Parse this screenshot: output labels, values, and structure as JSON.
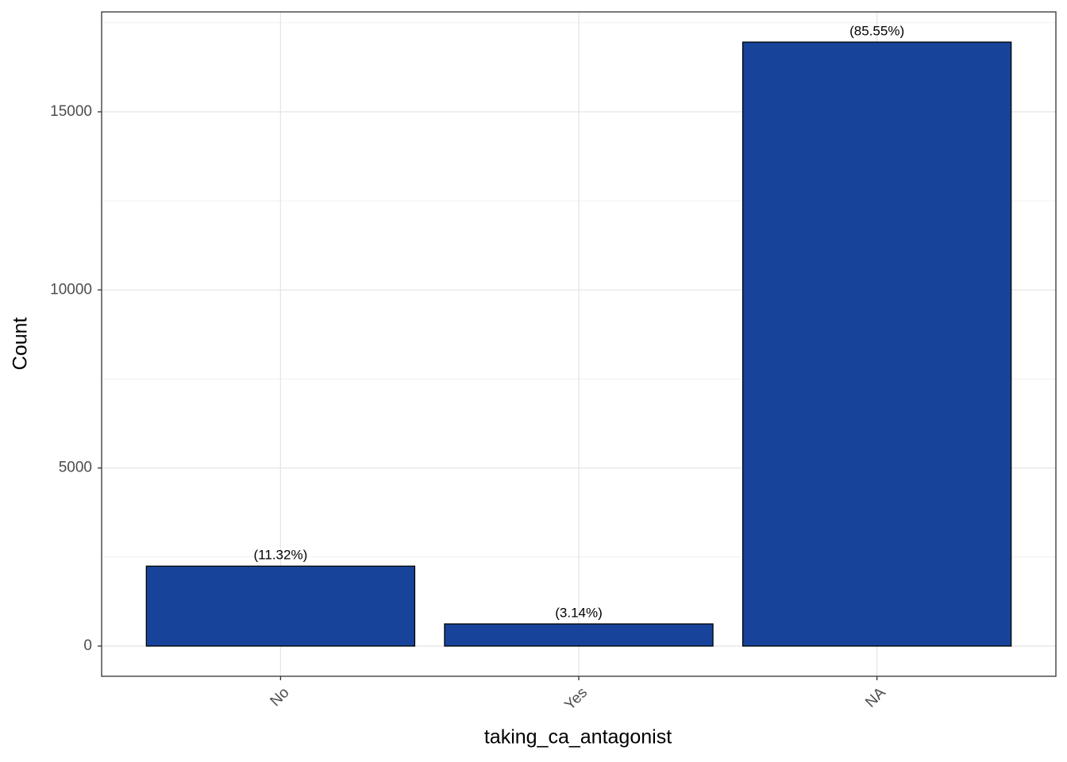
{
  "chart_data": {
    "type": "bar",
    "x_label": "taking_ca_antagonist",
    "y_label": "Count",
    "categories": [
      "No",
      "Yes",
      "NA"
    ],
    "values": [
      2244,
      622,
      16958
    ],
    "annotations": [
      "(11.32%)",
      "(3.14%)",
      "(85.55%)"
    ],
    "color": "#17449a",
    "ylim": [
      -848,
      17806
    ],
    "yticks": [
      0,
      5000,
      10000,
      15000
    ],
    "grid": true
  }
}
